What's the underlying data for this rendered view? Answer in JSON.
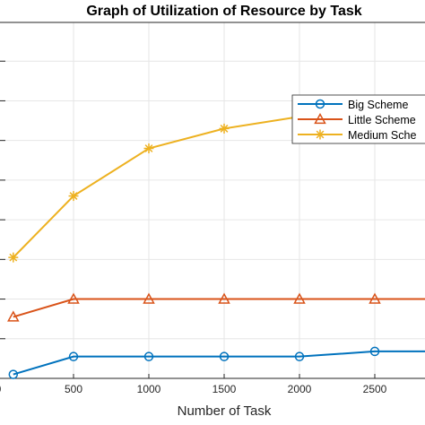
{
  "chart_data": {
    "type": "line",
    "title": "Graph of Utilization of Resource by Task",
    "xlabel": "Number of Task",
    "ylabel": "",
    "x": [
      100,
      500,
      1000,
      1500,
      2000,
      2500,
      3000
    ],
    "xticks": [
      "0",
      "500",
      "1000",
      "1500",
      "2000",
      "2500"
    ],
    "xlim": [
      0,
      2800
    ],
    "ylim": [
      0,
      9
    ],
    "grid": true,
    "legend_position": "upper-right",
    "series": [
      {
        "name": "Big Scheme",
        "values": [
          0.1,
          0.55,
          0.55,
          0.55,
          0.55,
          0.68,
          0.68
        ],
        "color": "#0072BD",
        "marker": "circle"
      },
      {
        "name": "Little Scheme",
        "values": [
          1.55,
          2.0,
          2.0,
          2.0,
          2.0,
          2.0,
          2.0
        ],
        "color": "#D95319",
        "marker": "triangle"
      },
      {
        "name": "Medium Sche",
        "values": [
          3.05,
          4.6,
          5.8,
          6.3,
          6.6,
          6.8,
          6.95
        ],
        "color": "#EDB120",
        "marker": "asterisk"
      }
    ]
  }
}
